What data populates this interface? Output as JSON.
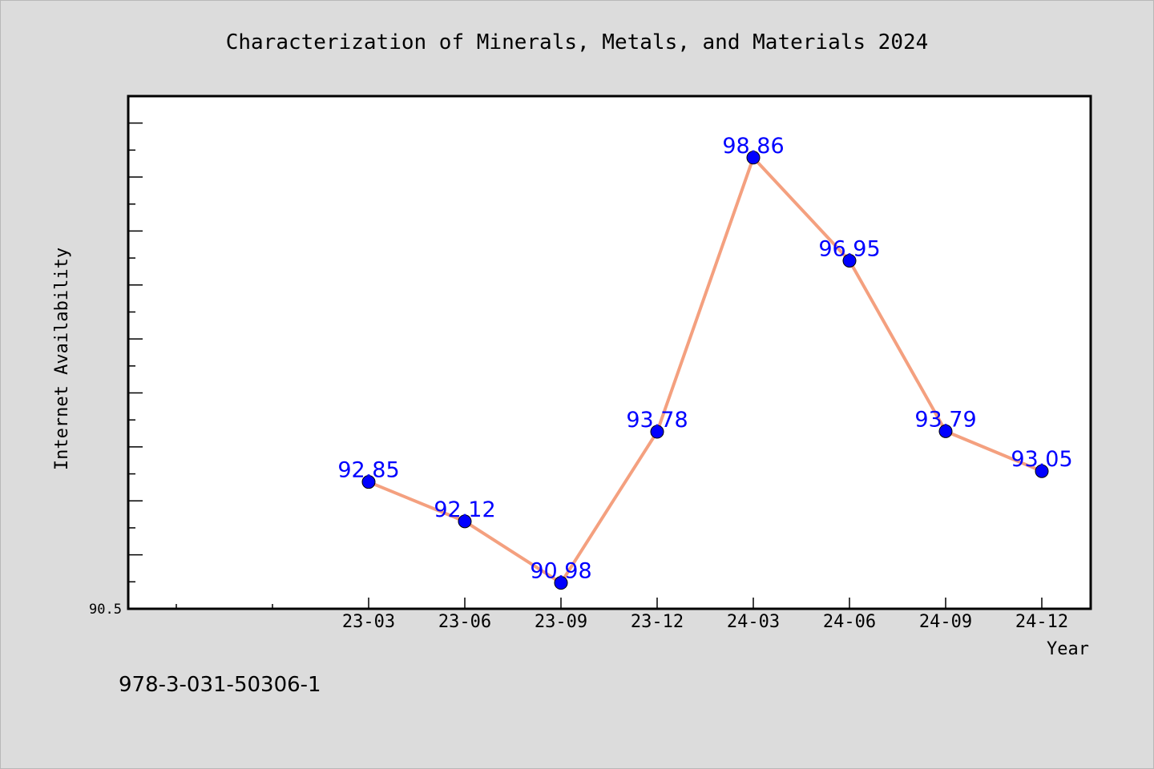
{
  "chart_data": {
    "type": "line",
    "title": "Characterization of Minerals, Metals, and Materials 2024",
    "xlabel": "Year",
    "ylabel": "Internet Availability",
    "categories": [
      "23-03",
      "23-06",
      "23-09",
      "23-12",
      "24-03",
      "24-06",
      "24-09",
      "24-12"
    ],
    "series": [
      {
        "values": [
          92.85,
          92.12,
          90.98,
          93.78,
          98.86,
          96.95,
          93.79,
          93.05
        ]
      }
    ],
    "data_labels": [
      "92.85",
      "92.12",
      "90.98",
      "93.78",
      "98.86",
      "96.95",
      "93.79",
      "93.05"
    ],
    "ylim": [
      90.5,
      100
    ],
    "ytick_label": "90.5",
    "grid": false,
    "colors": {
      "line": "#f4a07f",
      "marker": "#0000ff",
      "label": "#0000ff",
      "background": "#dcdcdc",
      "plot_bg": "#ffffff"
    }
  },
  "footer": {
    "isbn": "978-3-031-50306-1"
  }
}
